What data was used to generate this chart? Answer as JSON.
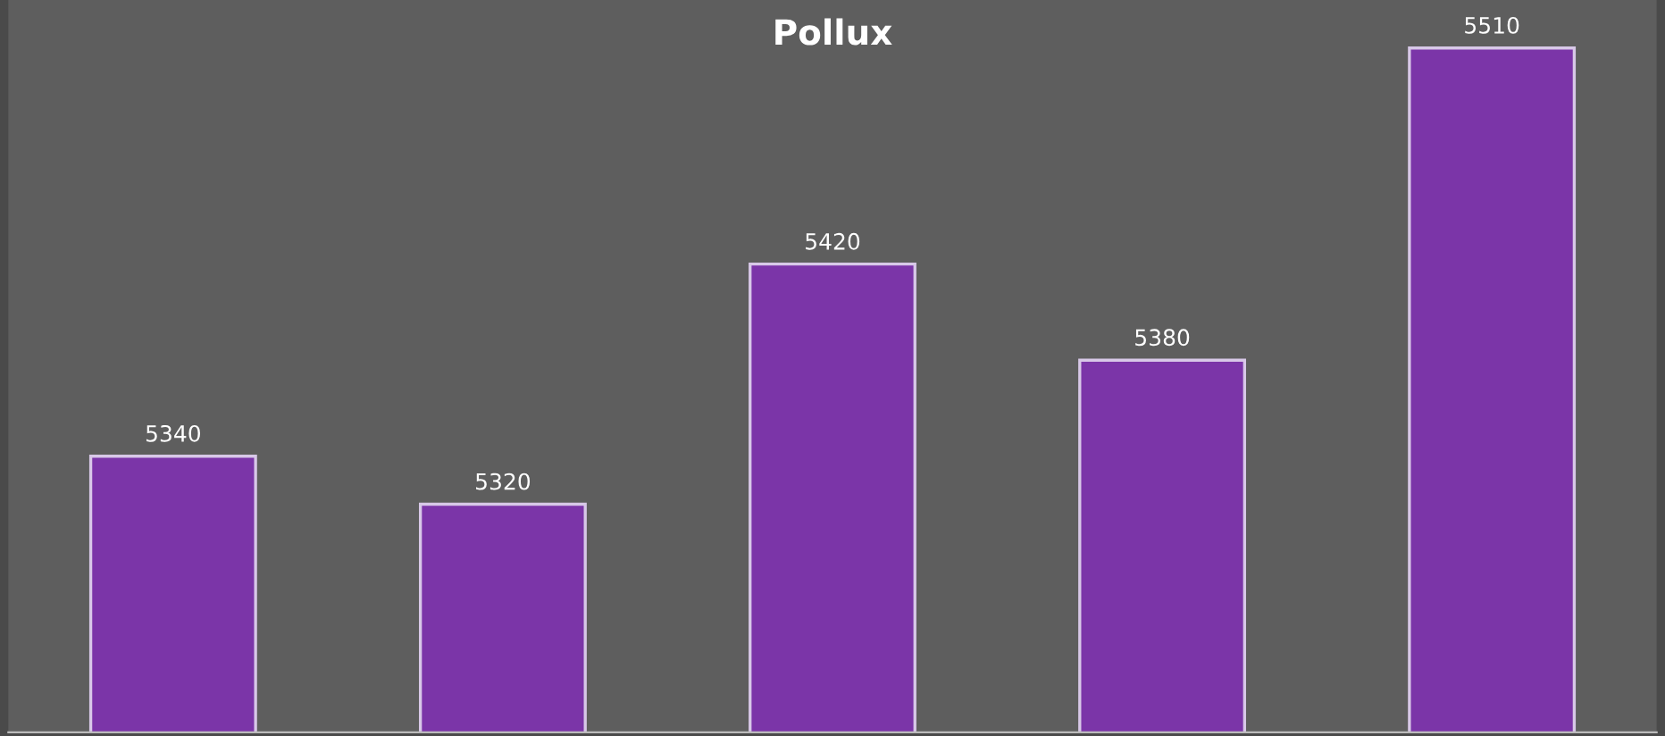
{
  "chart_data": {
    "type": "bar",
    "title": "Pollux",
    "categories": [
      null,
      null,
      null,
      null,
      null
    ],
    "values": [
      5340,
      5320,
      5420,
      5380,
      5510
    ],
    "color": "#7b35a8",
    "ylim": [
      5225,
      5530
    ],
    "data_labels": true,
    "grid": false
  }
}
